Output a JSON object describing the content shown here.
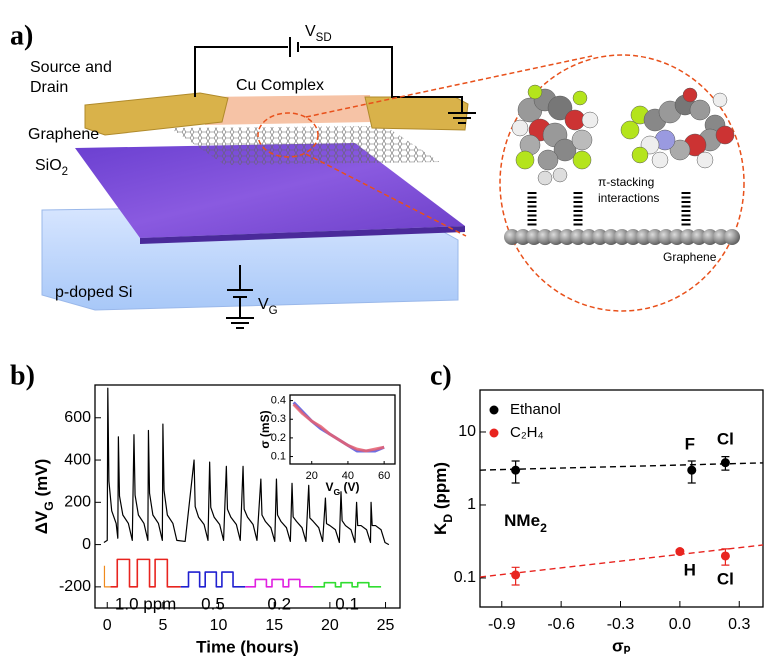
{
  "diagram": {
    "label": "a)",
    "vsd": [
      "V",
      "SD"
    ],
    "source_drain": [
      "Source and",
      "Drain"
    ],
    "cu_complex": "Cu Complex",
    "graphene": "Graphene",
    "sio2": [
      "SiO",
      "2"
    ],
    "si": "p-doped Si",
    "vg": [
      "V",
      "G"
    ],
    "stacking": [
      "π-stacking",
      "interactions"
    ],
    "graphene_zoom": "Graphene"
  },
  "chart_data": [
    {
      "type": "line",
      "panel_label": "b)",
      "xlabel": "Time (hours)",
      "ylabel": [
        "ΔV",
        "G",
        " (mV)"
      ],
      "xlim": [
        -1.1,
        26.3
      ],
      "ylim": [
        -300,
        755
      ],
      "xticks": [
        0,
        5,
        10,
        15,
        20,
        25
      ],
      "yticks": [
        -200,
        0,
        200,
        400,
        600
      ],
      "series": [
        {
          "color": "#000000",
          "x": [
            -0.3,
            0,
            0.05,
            0.15,
            0.4,
            0.8,
            0.95,
            1.0,
            1.1,
            1.4,
            1.9,
            2.25,
            2.4,
            2.5,
            2.8,
            3.3,
            3.65,
            3.7,
            3.8,
            4.1,
            4.6,
            4.95,
            5.0,
            5.1,
            5.4,
            5.9,
            6.25,
            7.0,
            7.8,
            7.9,
            8.2,
            8.7,
            9.05,
            9.2,
            9.3,
            9.6,
            10.1,
            10.45,
            10.7,
            10.8,
            11.1,
            11.6,
            11.95,
            12.2,
            12.3,
            12.6,
            13.1,
            13.45,
            13.8,
            13.9,
            14.2,
            14.7,
            15.05,
            15.2,
            15.3,
            15.6,
            16.1,
            16.45,
            16.6,
            16.7,
            17.0,
            17.5,
            17.85,
            18.1,
            18.2,
            18.5,
            19.0,
            19.35,
            19.6,
            19.7,
            20.0,
            20.5,
            20.85,
            21.0,
            21.1,
            21.4,
            21.9,
            22.25,
            22.4,
            22.5,
            22.8,
            23.3,
            23.65,
            23.7,
            23.8,
            24.1,
            24.6,
            24.95,
            25.3
          ],
          "values": [
            10,
            20,
            740,
            300,
            160,
            100,
            30,
            510,
            230,
            140,
            100,
            20,
            520,
            234,
            140,
            100,
            20,
            540,
            243,
            140,
            100,
            20,
            570,
            257,
            140,
            100,
            20,
            15,
            400,
            180,
            130,
            95,
            20,
            390,
            176,
            130,
            95,
            20,
            370,
            167,
            130,
            95,
            20,
            370,
            167,
            130,
            95,
            20,
            310,
            140,
            110,
            80,
            15,
            310,
            140,
            110,
            80,
            15,
            290,
            131,
            110,
            80,
            15,
            280,
            126,
            110,
            80,
            15,
            220,
            99,
            90,
            70,
            10,
            250,
            113,
            90,
            70,
            10,
            200,
            90,
            90,
            70,
            10,
            200,
            90,
            90,
            70,
            10,
            0
          ]
        },
        {
          "color": "#f08a1c",
          "x": [
            -0.25,
            -0.25,
            0.3
          ],
          "values": [
            -100,
            -200,
            -200
          ]
        },
        {
          "name": "1.0 ppm",
          "color": "#e8241f",
          "x": [
            0.3,
            0.9,
            0.9,
            2.0,
            2.0,
            2.7,
            2.7,
            3.8,
            3.8,
            4.3,
            4.3,
            5.4,
            5.4,
            6.6
          ],
          "values": [
            -200,
            -200,
            -70,
            -70,
            -200,
            -200,
            -70,
            -70,
            -200,
            -200,
            -70,
            -70,
            -200,
            -200
          ]
        },
        {
          "name": "0.5",
          "color": "#2020d0",
          "x": [
            6.6,
            7.3,
            7.3,
            8.3,
            8.3,
            8.8,
            8.8,
            9.8,
            9.8,
            10.3,
            10.3,
            11.3,
            11.3,
            12.4
          ],
          "values": [
            -200,
            -200,
            -130,
            -130,
            -200,
            -200,
            -130,
            -130,
            -200,
            -200,
            -130,
            -130,
            -200,
            -200
          ]
        },
        {
          "name": "0.2",
          "color": "#e020e0",
          "x": [
            12.4,
            13.3,
            13.3,
            14.3,
            14.3,
            14.8,
            14.8,
            15.8,
            15.8,
            16.3,
            16.3,
            17.3,
            17.3,
            18.5
          ],
          "values": [
            -200,
            -200,
            -165,
            -165,
            -200,
            -200,
            -165,
            -165,
            -200,
            -200,
            -165,
            -165,
            -200,
            -200
          ]
        },
        {
          "name": "0.1",
          "color": "#30dd30",
          "x": [
            18.5,
            19.5,
            19.5,
            20.5,
            20.5,
            21.0,
            21.0,
            22.0,
            22.0,
            22.5,
            22.5,
            23.5,
            23.5,
            24.6
          ],
          "values": [
            -200,
            -200,
            -180,
            -180,
            -200,
            -200,
            -180,
            -180,
            -200,
            -200,
            -180,
            -180,
            -200,
            -200
          ]
        }
      ]
    },
    {
      "type": "line",
      "xlabel": [
        "V",
        "G",
        " (V)"
      ],
      "ylabel": "σ (mS)",
      "xlim": [
        8,
        66
      ],
      "ylim": [
        0.06,
        0.43
      ],
      "xticks": [
        20,
        40,
        60
      ],
      "yticks": [
        0.1,
        0.2,
        0.3,
        0.4
      ],
      "series": [
        {
          "color": "#5555dd",
          "x": [
            10,
            15,
            20,
            25,
            30,
            35,
            40,
            45,
            50,
            55,
            60
          ],
          "values": [
            0.39,
            0.34,
            0.29,
            0.25,
            0.22,
            0.19,
            0.16,
            0.13,
            0.13,
            0.13,
            0.15
          ]
        },
        {
          "color": "#e8606e",
          "x": [
            10,
            15,
            20,
            25,
            30,
            35,
            40,
            45,
            50,
            55,
            60
          ],
          "values": [
            0.38,
            0.33,
            0.29,
            0.26,
            0.22,
            0.19,
            0.16,
            0.14,
            0.13,
            0.14,
            0.15
          ]
        }
      ]
    },
    {
      "type": "scatter",
      "panel_label": "c)",
      "xlabel": "σₚ",
      "ylabel": [
        "K",
        "D",
        " (ppm)"
      ],
      "log_y": true,
      "xlim": [
        -1.01,
        0.42
      ],
      "ylim": [
        0.04,
        37.6
      ],
      "xticks": [
        -0.9,
        -0.6,
        -0.3,
        {
          "value": 0,
          "label": "0.0"
        },
        0.3
      ],
      "yticks": [
        0.1,
        1,
        10
      ],
      "legend": "upper left",
      "series": [
        {
          "name": "Ethanol",
          "color": "#000000",
          "x": [
            -0.83,
            0.06,
            0.23
          ],
          "values": [
            3.0,
            3.0,
            3.8
          ],
          "errors": [
            1.0,
            1.0,
            0.8
          ]
        },
        {
          "name": "C₂H₄",
          "color": "#e8241f",
          "x": [
            -0.83,
            0.0,
            0.23
          ],
          "values": [
            0.11,
            0.23,
            0.2
          ],
          "errors": [
            0.03,
            0.015,
            0.05
          ]
        },
        {
          "color": "#000000",
          "style": "dashed",
          "x": [
            -1.01,
            0.42
          ],
          "values": [
            3.0,
            3.77
          ]
        },
        {
          "color": "#e8241f",
          "style": "dashed",
          "x": [
            -1.01,
            0.42
          ],
          "values": [
            0.103,
            0.283
          ]
        }
      ],
      "annotations": [
        {
          "text": [
            "NMe",
            "2"
          ],
          "x": -0.78,
          "y": 0.58
        },
        {
          "text": "F",
          "x": 0.05,
          "y": 6.6
        },
        {
          "text": "Cl",
          "x": 0.23,
          "y": 7.8
        },
        {
          "text": "H",
          "x": 0.05,
          "y": 0.125
        },
        {
          "text": "Cl",
          "x": 0.23,
          "y": 0.093
        }
      ]
    }
  ]
}
